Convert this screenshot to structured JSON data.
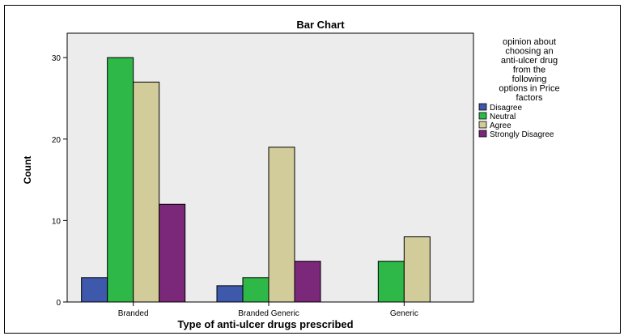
{
  "chart_data": {
    "type": "bar",
    "title": "Bar Chart",
    "xlabel": "Type of anti-ulcer drugs prescribed",
    "ylabel": "Count",
    "categories": [
      "Branded",
      "Branded Generic",
      "Generic"
    ],
    "ylim": [
      0,
      33
    ],
    "yticks": [
      0,
      10,
      20,
      30
    ],
    "grid": false,
    "legend_position": "right",
    "legend_title": "opinion about choosing an anti-ulcer drug from the following options in Price factors",
    "legend_title_lines": [
      "opinion about",
      "choosing an",
      "anti-ulcer drug",
      "from the",
      "following",
      "options in Price",
      "factors"
    ],
    "series": [
      {
        "name": "Disagree",
        "color": "#3e58ac",
        "values": [
          3,
          2,
          0
        ]
      },
      {
        "name": "Neutral",
        "color": "#2eb848",
        "values": [
          30,
          3,
          5
        ]
      },
      {
        "name": "Agree",
        "color": "#d2cc9a",
        "values": [
          27,
          19,
          8
        ]
      },
      {
        "name": "Strongly Disagree",
        "color": "#7c287a",
        "values": [
          12,
          5,
          0
        ]
      }
    ],
    "plot_background": "#ececec"
  }
}
